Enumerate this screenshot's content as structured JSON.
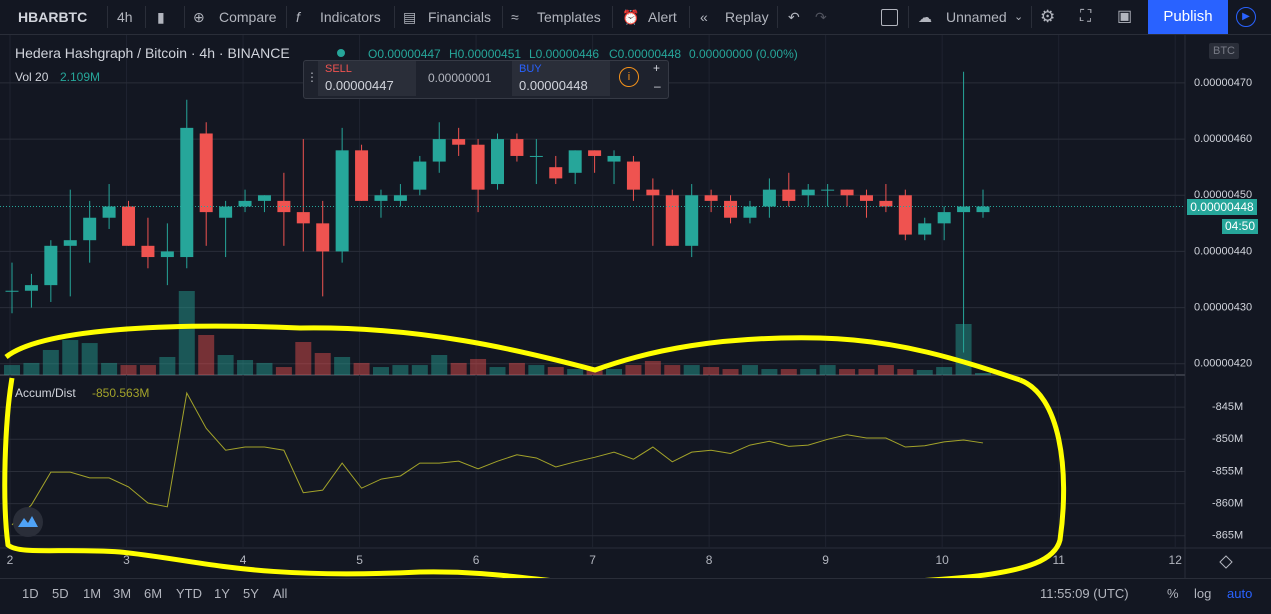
{
  "toolbar": {
    "symbol": "HBARBTC",
    "interval": "4h",
    "compare": "Compare",
    "indicators": "Indicators",
    "financials": "Financials",
    "templates": "Templates",
    "alert": "Alert",
    "replay": "Replay",
    "layout_name": "Unnamed",
    "publish": "Publish"
  },
  "legend": {
    "open": "O0.00000447",
    "high": "H0.00000451",
    "low": "L0.00000446",
    "close": "C0.00000448",
    "change": "0.00000000 (0.00%)",
    "volume_name": "Vol 20",
    "volume_value": "2.109M",
    "indicator_name": "Accum/Dist",
    "indicator_value": "-850.563M"
  },
  "trade_widget": {
    "sell_label": "SELL",
    "sell_price": "0.00000447",
    "spread": "0.00000001",
    "buy_label": "BUY",
    "buy_price": "0.00000448"
  },
  "price_axis": {
    "currency": "BTC",
    "last_price": "0.00000448",
    "countdown": "04:50"
  },
  "bottom_bar": {
    "ranges": [
      "1D",
      "5D",
      "1M",
      "3M",
      "6M",
      "YTD",
      "1Y",
      "5Y",
      "All"
    ],
    "time": "11:55:09 (UTC)",
    "percent": "%",
    "log": "log",
    "auto": "auto"
  },
  "chart_data": [
    {
      "type": "candlestick",
      "title": "Hedera Hashgraph / Bitcoin · 4h · BINANCE",
      "up_color": "#26a69a",
      "down_color": "#ef5350",
      "open": [
        4.33e-06,
        4.33e-06,
        4.34e-06,
        4.41e-06,
        4.42e-06,
        4.46e-06,
        4.48e-06,
        4.41e-06,
        4.39e-06,
        4.39e-06,
        4.61e-06,
        4.46e-06,
        4.48e-06,
        4.49e-06,
        4.49e-06,
        4.47e-06,
        4.45e-06,
        4.4e-06,
        4.58e-06,
        4.49e-06,
        4.49e-06,
        4.51e-06,
        4.56e-06,
        4.6e-06,
        4.59e-06,
        4.52e-06,
        4.6e-06,
        4.57e-06,
        4.55e-06,
        4.54e-06,
        4.58e-06,
        4.56e-06,
        4.56e-06,
        4.51e-06,
        4.5e-06,
        4.41e-06,
        4.5e-06,
        4.49e-06,
        4.46e-06,
        4.48e-06,
        4.51e-06,
        4.5e-06,
        4.51e-06,
        4.51e-06,
        4.5e-06,
        4.49e-06,
        4.5e-06,
        4.43e-06,
        4.45e-06,
        4.47e-06,
        4.47e-06
      ],
      "high": [
        4.38e-06,
        4.36e-06,
        4.42e-06,
        4.51e-06,
        4.49e-06,
        4.52e-06,
        4.49e-06,
        4.46e-06,
        4.45e-06,
        4.67e-06,
        4.63e-06,
        4.49e-06,
        4.51e-06,
        4.5e-06,
        4.54e-06,
        4.6e-06,
        4.49e-06,
        4.62e-06,
        4.59e-06,
        4.51e-06,
        4.52e-06,
        4.57e-06,
        4.63e-06,
        4.62e-06,
        4.6e-06,
        4.61e-06,
        4.61e-06,
        4.6e-06,
        4.57e-06,
        4.58e-06,
        4.58e-06,
        4.58e-06,
        4.57e-06,
        4.53e-06,
        4.51e-06,
        4.52e-06,
        4.51e-06,
        4.5e-06,
        4.49e-06,
        4.53e-06,
        4.54e-06,
        4.52e-06,
        4.52e-06,
        4.51e-06,
        4.51e-06,
        4.52e-06,
        4.51e-06,
        4.46e-06,
        4.48e-06,
        4.72e-06,
        4.51e-06
      ],
      "low": [
        4.29e-06,
        4.3e-06,
        4.31e-06,
        4.32e-06,
        4.38e-06,
        4.44e-06,
        4.41e-06,
        4.37e-06,
        4.34e-06,
        4.37e-06,
        4.41e-06,
        4.39e-06,
        4.47e-06,
        4.47e-06,
        4.41e-06,
        4.4e-06,
        4.32e-06,
        4.38e-06,
        4.49e-06,
        4.46e-06,
        4.48e-06,
        4.5e-06,
        4.54e-06,
        4.57e-06,
        4.47e-06,
        4.51e-06,
        4.56e-06,
        4.52e-06,
        4.52e-06,
        4.52e-06,
        4.54e-06,
        4.52e-06,
        4.49e-06,
        4.41e-06,
        4.41e-06,
        4.39e-06,
        4.47e-06,
        4.45e-06,
        4.45e-06,
        4.46e-06,
        4.48e-06,
        4.48e-06,
        4.48e-06,
        4.48e-06,
        4.46e-06,
        4.47e-06,
        4.42e-06,
        4.42e-06,
        4.42e-06,
        4.22e-06,
        4.46e-06
      ],
      "close": [
        4.33e-06,
        4.34e-06,
        4.41e-06,
        4.42e-06,
        4.46e-06,
        4.48e-06,
        4.41e-06,
        4.39e-06,
        4.4e-06,
        4.62e-06,
        4.47e-06,
        4.48e-06,
        4.49e-06,
        4.5e-06,
        4.47e-06,
        4.45e-06,
        4.4e-06,
        4.58e-06,
        4.49e-06,
        4.5e-06,
        4.5e-06,
        4.56e-06,
        4.6e-06,
        4.59e-06,
        4.51e-06,
        4.6e-06,
        4.57e-06,
        4.57e-06,
        4.53e-06,
        4.58e-06,
        4.57e-06,
        4.57e-06,
        4.51e-06,
        4.5e-06,
        4.41e-06,
        4.5e-06,
        4.49e-06,
        4.46e-06,
        4.48e-06,
        4.51e-06,
        4.49e-06,
        4.51e-06,
        4.51e-06,
        4.5e-06,
        4.49e-06,
        4.48e-06,
        4.43e-06,
        4.45e-06,
        4.47e-06,
        4.48e-06,
        4.48e-06
      ],
      "volume": [
        10.5,
        12.7,
        26.4,
        36.9,
        33.7,
        12.7,
        10.5,
        10.5,
        19,
        88.6,
        42.2,
        21.1,
        15.8,
        12.7,
        8.4,
        34.8,
        23.2,
        19,
        12.7,
        8.4,
        10.5,
        10.5,
        21.1,
        12.7,
        16.9,
        8.4,
        12.7,
        10.5,
        8.4,
        6.3,
        6.3,
        6.3,
        10.5,
        14.8,
        10.5,
        10.5,
        8.4,
        6.3,
        10.5,
        6.3,
        6.3,
        6.3,
        10.5,
        6.3,
        6.3,
        10.5,
        6.3,
        5.3,
        8.4,
        53.8,
        2.109
      ],
      "ylim": [
        4.18e-06,
        4.78e-06
      ],
      "yticks": [
        {
          "value": 4.2e-06,
          "label": "0.00000420"
        },
        {
          "value": 4.3e-06,
          "label": "0.00000430"
        },
        {
          "value": 4.4e-06,
          "label": "0.00000440"
        },
        {
          "value": 4.5e-06,
          "label": "0.00000450"
        },
        {
          "value": 4.6e-06,
          "label": "0.00000460"
        },
        {
          "value": 4.7e-06,
          "label": "0.00000470"
        }
      ],
      "xticks": [
        "2",
        "3",
        "4",
        "5",
        "6",
        "7",
        "8",
        "9",
        "10",
        "11",
        "12"
      ],
      "grid": true
    },
    {
      "type": "line",
      "color": "#a3a32a",
      "values": [
        -863.3,
        -860.2,
        -855.1,
        -855.1,
        -856,
        -856,
        -857.4,
        -859.9,
        -860.5,
        -842.8,
        -848.3,
        -851.7,
        -851.2,
        -851.2,
        -851.7,
        -858.3,
        -857.9,
        -853.7,
        -857.6,
        -856.2,
        -855.7,
        -853.7,
        -853.7,
        -853.4,
        -854.6,
        -853.4,
        -852.4,
        -852.9,
        -854.3,
        -853.5,
        -852.8,
        -852,
        -853.1,
        -851.2,
        -853.5,
        -852,
        -851.7,
        -852.2,
        -850.9,
        -850.3,
        -851.1,
        -850.9,
        -850,
        -849.3,
        -849.8,
        -849.8,
        -851.2,
        -851,
        -850.4,
        -850.1,
        -850.563
      ],
      "ylim": [
        -866.9,
        -840
      ],
      "yticks": [
        {
          "value": -845,
          "label": "-845M"
        },
        {
          "value": -850,
          "label": "-850M"
        },
        {
          "value": -855,
          "label": "-855M"
        },
        {
          "value": -860,
          "label": "-860M"
        },
        {
          "value": -865,
          "label": "-865M"
        }
      ],
      "grid": true
    }
  ]
}
